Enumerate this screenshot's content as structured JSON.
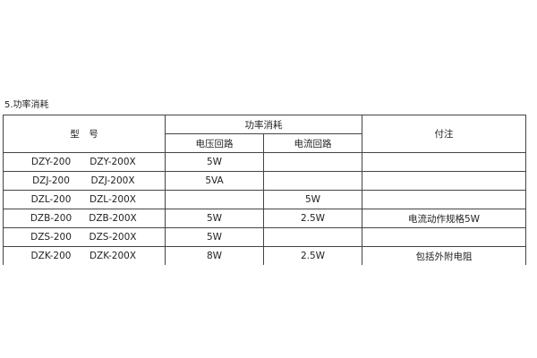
{
  "caption": "5.功率消耗",
  "headers": {
    "model": "型　号",
    "power": "功率消耗",
    "voltage": "电压回路",
    "current": "电流回路",
    "note": "付注"
  },
  "rows": [
    {
      "model_a": "DZY-200",
      "model_b": "DZY-200X",
      "voltage": "5W",
      "current": "",
      "note": ""
    },
    {
      "model_a": "DZJ-200",
      "model_b": "DZJ-200X",
      "voltage": "5VA",
      "current": "",
      "note": ""
    },
    {
      "model_a": "DZL-200",
      "model_b": "DZL-200X",
      "voltage": "",
      "current": "5W",
      "note": ""
    },
    {
      "model_a": "DZB-200",
      "model_b": "DZB-200X",
      "voltage": "5W",
      "current": "2.5W",
      "note": "电流动作规格5W"
    },
    {
      "model_a": "DZS-200",
      "model_b": "DZS-200X",
      "voltage": "5W",
      "current": "",
      "note": ""
    },
    {
      "model_a": "DZK-200",
      "model_b": "DZK-200X",
      "voltage": "8W",
      "current": "2.5W",
      "note": "包括外附电阻"
    }
  ]
}
